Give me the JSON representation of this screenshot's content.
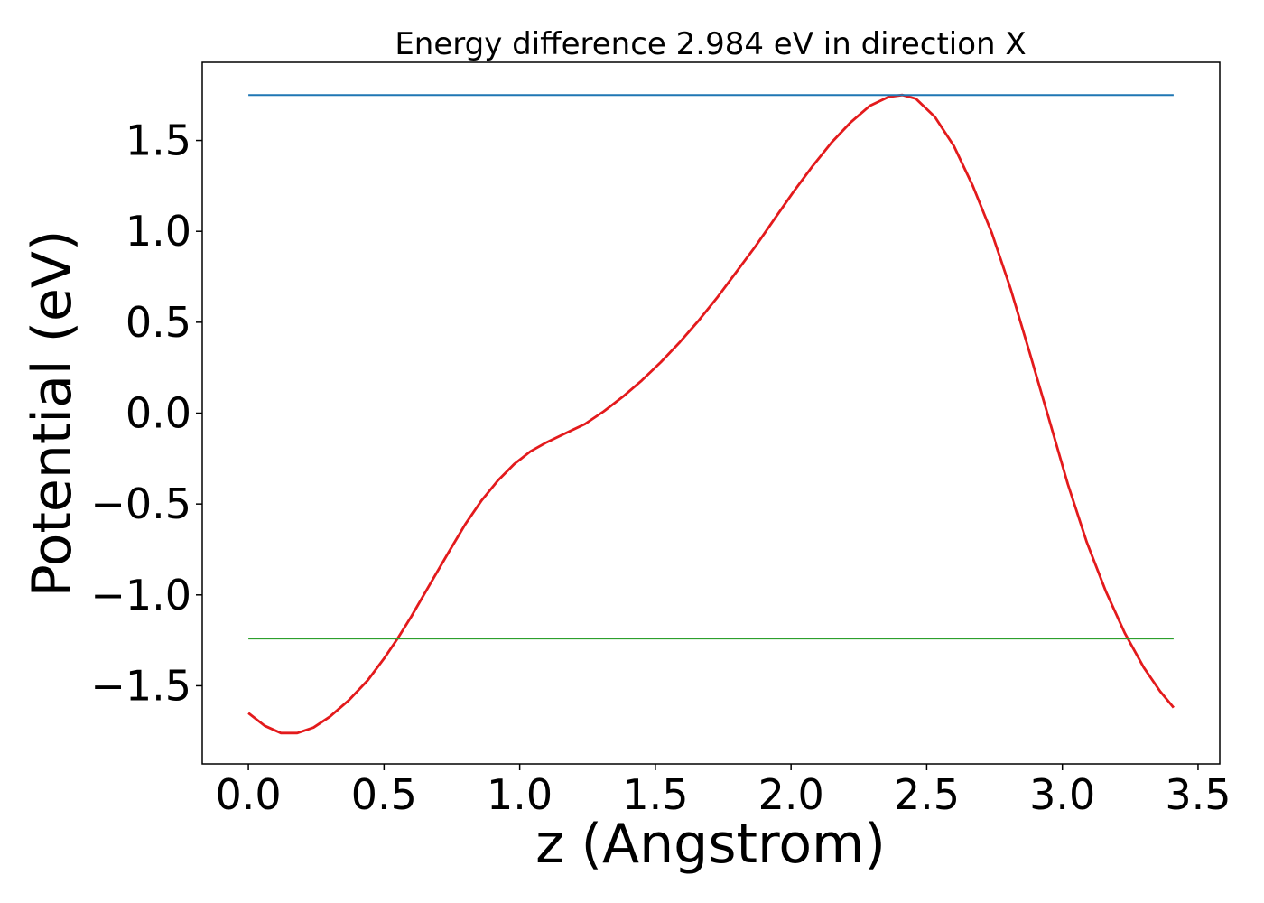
{
  "chart_data": {
    "type": "line",
    "title": "Energy difference 2.984 eV in direction X",
    "xlabel": "z (Angstrom)",
    "ylabel": "Potential (eV)",
    "xlim": [
      -0.17,
      3.58
    ],
    "ylim": [
      -1.93,
      1.93
    ],
    "x_ticks": [
      0.0,
      0.5,
      1.0,
      1.5,
      2.0,
      2.5,
      3.0,
      3.5
    ],
    "x_tick_labels": [
      "0.0",
      "0.5",
      "1.0",
      "1.5",
      "2.0",
      "2.5",
      "3.0",
      "3.5"
    ],
    "y_ticks": [
      -1.5,
      -1.0,
      -0.5,
      0.0,
      0.5,
      1.0,
      1.5
    ],
    "y_tick_labels": [
      "−1.5",
      "−1.0",
      "−0.5",
      "0.0",
      "0.5",
      "1.0",
      "1.5"
    ],
    "grid": false,
    "series": [
      {
        "color": "#e31a1c",
        "x": [
          0.0,
          0.06,
          0.12,
          0.18,
          0.24,
          0.3,
          0.37,
          0.44,
          0.5,
          0.55,
          0.6,
          0.67,
          0.74,
          0.8,
          0.86,
          0.92,
          0.98,
          1.04,
          1.1,
          1.17,
          1.24,
          1.31,
          1.38,
          1.45,
          1.52,
          1.59,
          1.66,
          1.73,
          1.8,
          1.87,
          1.94,
          2.01,
          2.08,
          2.15,
          2.22,
          2.29,
          2.36,
          2.41,
          2.46,
          2.53,
          2.6,
          2.67,
          2.74,
          2.81,
          2.88,
          2.95,
          3.02,
          3.09,
          3.16,
          3.23,
          3.3,
          3.36,
          3.41
        ],
        "y": [
          -1.65,
          -1.72,
          -1.76,
          -1.76,
          -1.73,
          -1.67,
          -1.58,
          -1.47,
          -1.35,
          -1.24,
          -1.12,
          -0.94,
          -0.76,
          -0.61,
          -0.48,
          -0.37,
          -0.28,
          -0.21,
          -0.16,
          -0.11,
          -0.06,
          0.01,
          0.09,
          0.18,
          0.28,
          0.39,
          0.51,
          0.64,
          0.78,
          0.92,
          1.07,
          1.22,
          1.36,
          1.49,
          1.6,
          1.69,
          1.74,
          1.75,
          1.73,
          1.63,
          1.47,
          1.25,
          0.99,
          0.68,
          0.33,
          -0.03,
          -0.39,
          -0.71,
          -0.98,
          -1.21,
          -1.4,
          -1.53,
          -1.62
        ]
      },
      {
        "color": "#1f77b4",
        "x": [
          0.0,
          3.41
        ],
        "y": [
          1.75,
          1.75
        ]
      },
      {
        "color": "#2ca02c",
        "x": [
          0.0,
          3.41
        ],
        "y": [
          -1.24,
          -1.24
        ]
      }
    ]
  }
}
